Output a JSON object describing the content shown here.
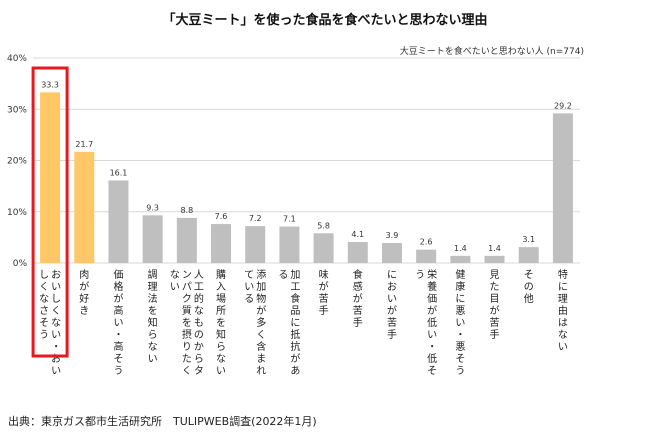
{
  "chart_data": {
    "type": "bar",
    "title": "「大豆ミート」を使った食品を食べたいと思わない理由",
    "subtitle": "大豆ミートを食べたいと思わない人 (n=774)",
    "source": "出典：東京ガス都市生活研究所　TULIPWEB調査(2022年1月)",
    "yticks": [
      "0%",
      "10%",
      "20%",
      "30%",
      "40%"
    ],
    "ylim": [
      0,
      40
    ],
    "grid": true,
    "unit": "%",
    "categories": [
      "おいしくない・おいしくなさそう",
      "肉が好き",
      "価格が高い・高そう",
      "調理法を知らない",
      "人工的なものからタンパク質を摂りたくない",
      "購入場所を知らない",
      "添加物が多く含まれている",
      "加工食品に抵抗がある",
      "味が苦手",
      "食感が苦手",
      "においが苦手",
      "栄養価が低い・低そう",
      "健康に悪い・悪そう",
      "見た目が苦手",
      "その他",
      "特に理由はない"
    ],
    "values": [
      33.3,
      21.7,
      16.1,
      9.3,
      8.8,
      7.6,
      7.2,
      7.1,
      5.8,
      4.1,
      3.9,
      2.6,
      1.4,
      1.4,
      3.1,
      29.2
    ],
    "value_labels": [
      "33.3",
      "21.7",
      "16.1",
      "9.3",
      "8.8",
      "7.6",
      "7.2",
      "7.1",
      "5.8",
      "4.1",
      "3.9",
      "2.6",
      "1.4",
      "1.4",
      "3.1",
      "29.2"
    ],
    "colors": {
      "highlight": "#FFC766",
      "default": "#BFBFBF",
      "grid": "#D9D9D9",
      "box": "#E8191E"
    },
    "highlight_indices": [
      0,
      1
    ],
    "boxed_index": 0
  }
}
